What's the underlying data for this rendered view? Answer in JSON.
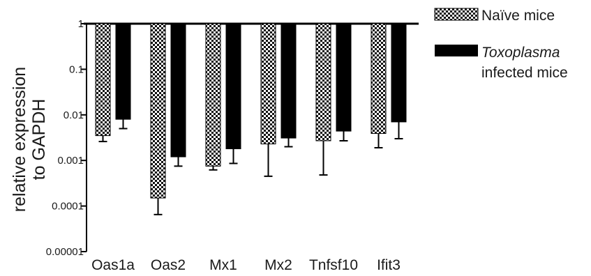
{
  "chart_data": {
    "type": "bar",
    "y_scale": "log",
    "ylim": [
      1e-05,
      1
    ],
    "yticks": [
      {
        "value": 1,
        "label": "1"
      },
      {
        "value": 0.1,
        "label": "0.1"
      },
      {
        "value": 0.01,
        "label": "0.01"
      },
      {
        "value": 0.001,
        "label": "0.001"
      },
      {
        "value": 0.0001,
        "label": "0.0001"
      },
      {
        "value": 1e-05,
        "label": "0.00001"
      }
    ],
    "ylabel_line1": "relative expression",
    "ylabel_line2": "to GAPDH",
    "xlabel": "",
    "categories": [
      "Oas1a",
      "Oas2",
      "Mx1",
      "Mx2",
      "Tnfsf10",
      "Ifit3"
    ],
    "series": [
      {
        "name": "Naïve mice",
        "fill": "checkered",
        "values": [
          0.0035,
          0.00015,
          0.00075,
          0.0023,
          0.0027,
          0.0039
        ],
        "error": [
          0.0026,
          6.5e-05,
          0.00062,
          0.00045,
          0.00048,
          0.0019
        ]
      },
      {
        "name": "Toxoplasma infected mice",
        "fill": "#000000",
        "values": [
          0.008,
          0.0012,
          0.0018,
          0.0031,
          0.0044,
          0.007
        ],
        "error": [
          0.005,
          0.00075,
          0.00086,
          0.002,
          0.0027,
          0.003
        ]
      }
    ],
    "legend": {
      "position": "right",
      "entries": [
        {
          "lines": [
            {
              "text": "Naïve mice",
              "italic": false
            }
          ]
        },
        {
          "lines": [
            {
              "text": "Toxoplasma",
              "italic": true
            },
            {
              "text": "infected mice",
              "italic": false
            }
          ]
        }
      ]
    },
    "grid": false,
    "colors": {
      "naive_pattern_dark": "#111111",
      "naive_pattern_light": "#ffffff",
      "infected": "#000000"
    }
  }
}
